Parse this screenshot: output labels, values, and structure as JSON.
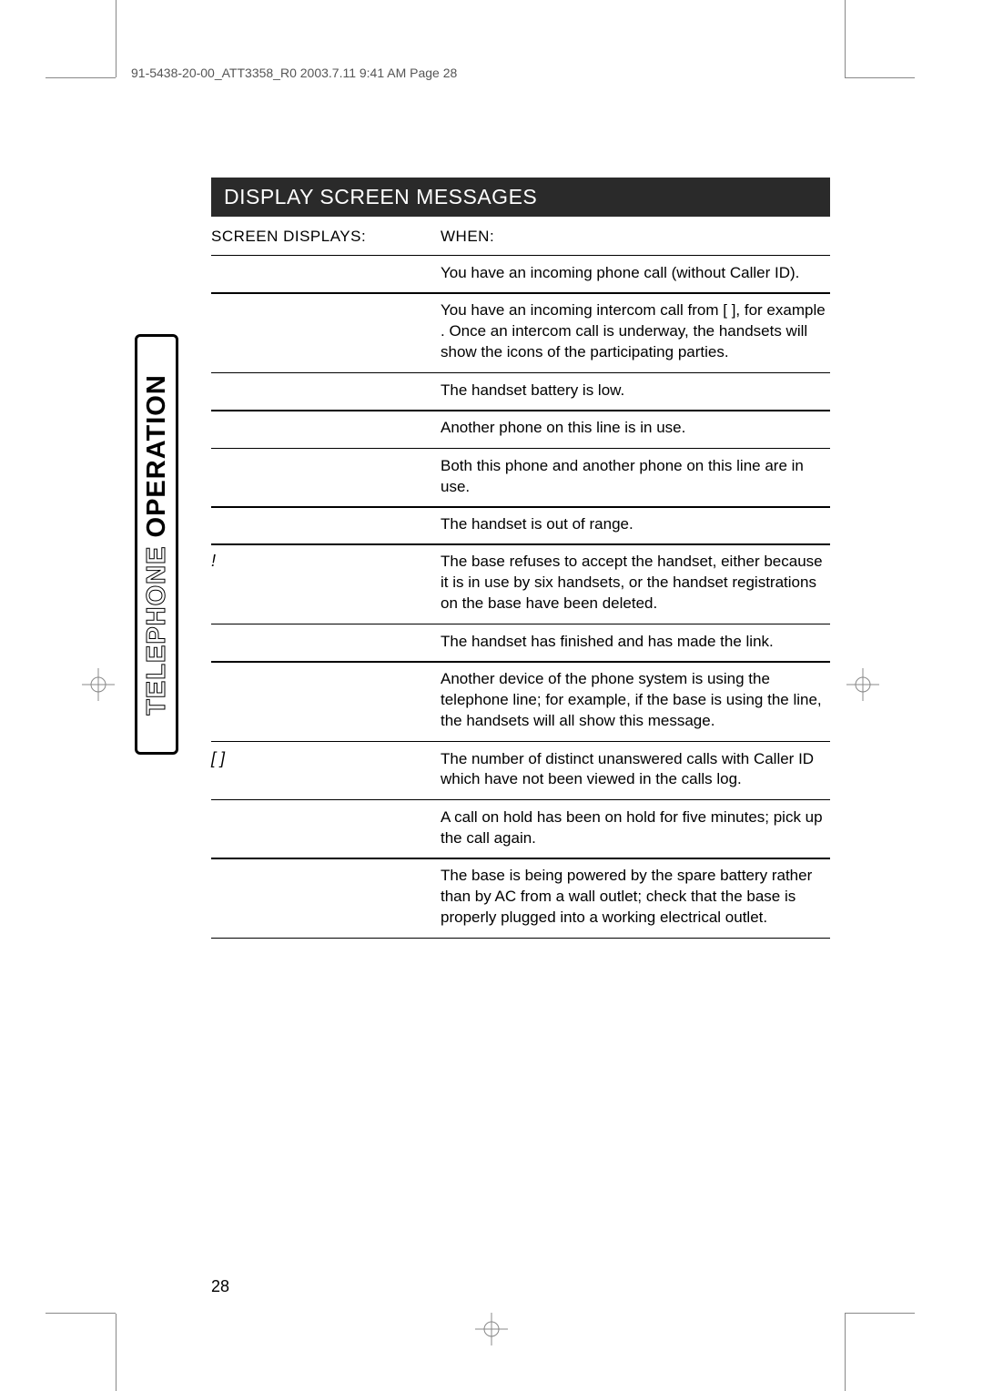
{
  "header": {
    "slug": "91-5438-20-00_ATT3358_R0  2003.7.11  9:41 AM  Page 28"
  },
  "sideTab": {
    "outline": "TELEPHONE",
    "solid": "OPERATION"
  },
  "sectionTitle": "DISPLAY SCREEN MESSAGES",
  "tableHeader": {
    "left": "SCREEN DISPLAYS:",
    "right": "WHEN:"
  },
  "rows": [
    {
      "left": "",
      "right": "You have an incoming phone call (without Caller ID)."
    },
    {
      "left": "",
      "right": "You have an incoming intercom call from [                    ], for example                     . Once an intercom call is underway, the handsets will show the icons of the participating parties."
    },
    {
      "left": "",
      "right": "The handset battery is low."
    },
    {
      "left": "",
      "right": "Another phone on this line is in use."
    },
    {
      "left": "",
      "right": "Both this phone and another phone on this line are in use."
    },
    {
      "left": "",
      "right": "The handset is out of range."
    },
    {
      "left": "                                         !",
      "right": "The base refuses to accept the handset, either because it is in use by six handsets, or the handset registrations on the base have been deleted."
    },
    {
      "left": "",
      "right": "The handset has finished                            and has made the link."
    },
    {
      "left": "",
      "right": "Another device of the phone system is using the telephone line; for example, if the base is using the line, the handsets will all show this message."
    },
    {
      "left": "[    ]",
      "right": "The number of distinct unanswered calls with Caller ID which have not been viewed in the calls log."
    },
    {
      "left": "",
      "right": "A call on hold has been on hold for five minutes; pick up the call again."
    },
    {
      "left": "",
      "right": "The base is being powered by the spare battery rather than by AC from a wall outlet; check that the base is properly plugged into a working electrical outlet."
    }
  ],
  "pageNumber": "28",
  "colors": {
    "sectionBg": "#2a2a2a",
    "sectionText": "#ffffff",
    "border": "#000000",
    "cropMark": "#888888"
  }
}
